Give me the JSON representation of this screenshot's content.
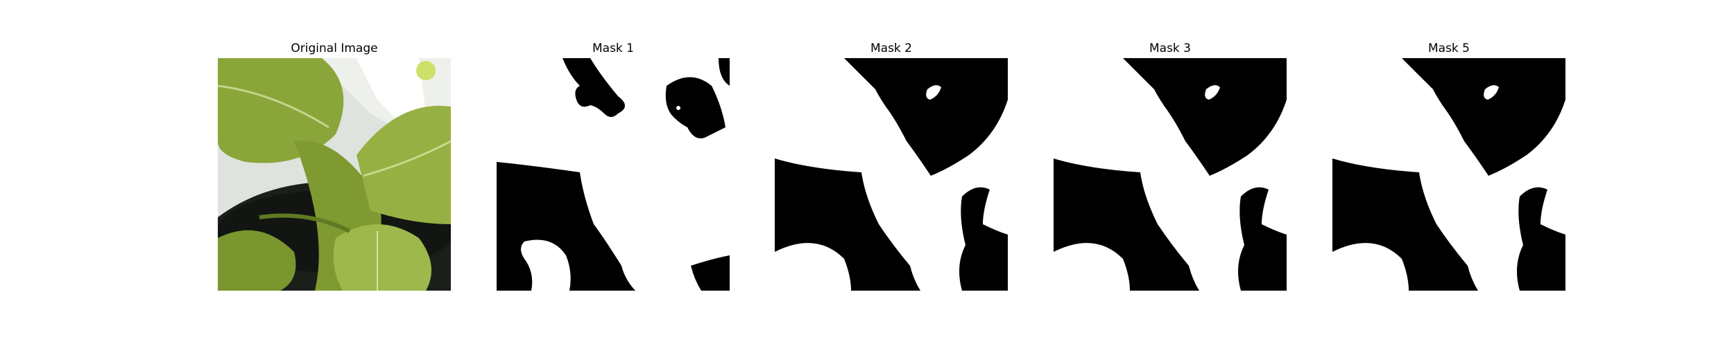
{
  "figure": {
    "panels": [
      {
        "title": "Original Image",
        "content": "photo of green leafy plant"
      },
      {
        "title": "Mask 1",
        "content": "binary mask"
      },
      {
        "title": "Mask 2",
        "content": "binary mask"
      },
      {
        "title": "Mask 3",
        "content": "binary mask"
      },
      {
        "title": "Mask 5",
        "content": "binary mask"
      }
    ],
    "colors": {
      "mask_foreground": "#ffffff",
      "mask_background": "#000000",
      "leaf_dark": "#6f8a2a",
      "leaf_light": "#a8c25a",
      "wall": "#dfe3de",
      "pot": "#1b1f1a"
    }
  }
}
